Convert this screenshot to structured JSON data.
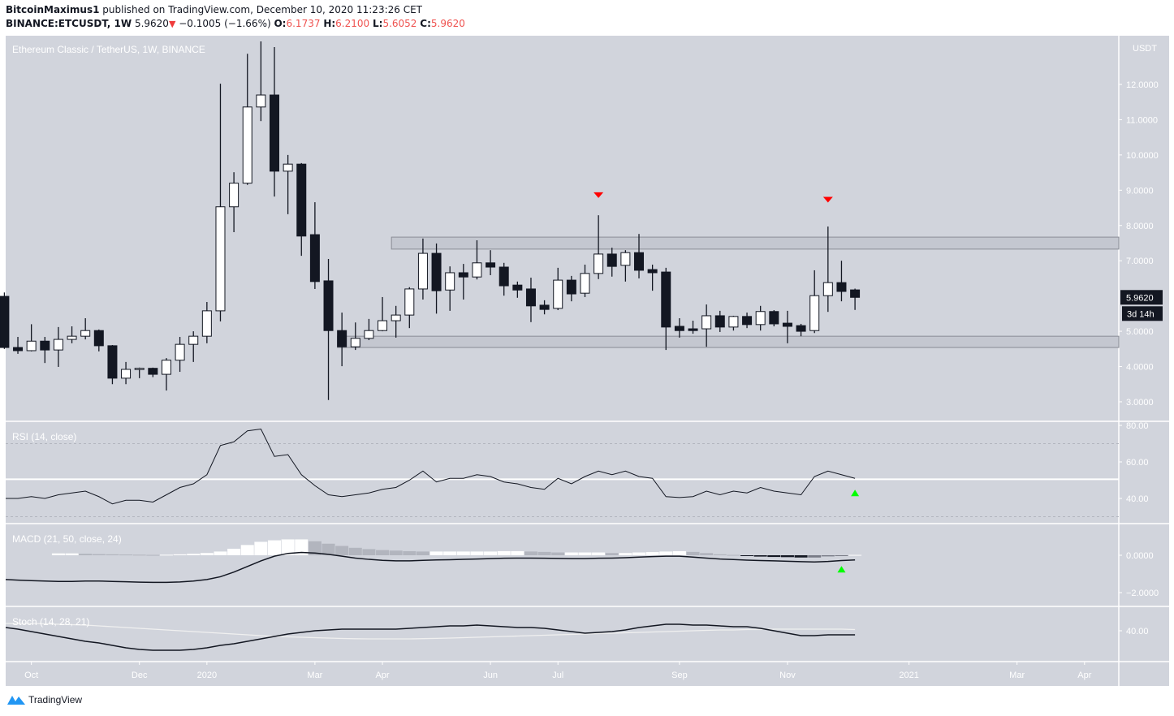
{
  "header": {
    "author": "BitcoinMaximus1",
    "published": "published on TradingView.com, December 10, 2020 11:23:26 CET",
    "symbol": "BINANCE:ETCUSDT, 1W",
    "last": "5.9620",
    "change": "−0.1005 (−1.66%)",
    "o_label": "O:",
    "o": "6.1737",
    "h_label": "H:",
    "h": "6.2100",
    "l_label": "L:",
    "l": "5.6052",
    "c_label": "C:",
    "c": "5.9620"
  },
  "footer": {
    "brand": "TradingView"
  },
  "colors": {
    "pane": "#d1d4dc",
    "down": "#131722",
    "up": "#ffffff",
    "red_marker": "#ff0000",
    "green_marker": "#00ff00"
  },
  "chart_data": {
    "type": "candlestick",
    "title": "Ethereum Classic / TetherUS, 1W, BINANCE",
    "currency_label": "USDT",
    "ylim": [
      2.4,
      13.9
    ],
    "y_ticks": [
      {
        "v": 12,
        "label": "12.0000"
      },
      {
        "v": 11,
        "label": "11.0000"
      },
      {
        "v": 10,
        "label": "10.0000"
      },
      {
        "v": 9,
        "label": "9.0000"
      },
      {
        "v": 8,
        "label": "8.0000"
      },
      {
        "v": 7,
        "label": "7.0000"
      },
      {
        "v": 5,
        "label": "5.0000"
      },
      {
        "v": 4,
        "label": "4.0000"
      },
      {
        "v": 3,
        "label": "3.0000"
      }
    ],
    "last_price": {
      "v": 5.962,
      "label": "5.9620",
      "countdown": "3d 14h"
    },
    "x_labels": [
      {
        "i": 2,
        "label": "Oct"
      },
      {
        "i": 10,
        "label": "Dec"
      },
      {
        "i": 15,
        "label": "2020"
      },
      {
        "i": 23,
        "label": "Mar"
      },
      {
        "i": 28,
        "label": "Apr"
      },
      {
        "i": 36,
        "label": "Jun"
      },
      {
        "i": 41,
        "label": "Jul"
      },
      {
        "i": 50,
        "label": "Sep"
      },
      {
        "i": 58,
        "label": "Nov"
      },
      {
        "i": 67,
        "label": "2021"
      },
      {
        "i": 75,
        "label": "Mar"
      },
      {
        "i": 80,
        "label": "Apr"
      }
    ],
    "candles": [
      [
        5.99,
        6.1,
        4.5,
        4.54
      ],
      [
        4.54,
        4.84,
        4.36,
        4.45
      ],
      [
        4.45,
        5.2,
        4.43,
        4.72
      ],
      [
        4.72,
        4.84,
        4.1,
        4.47
      ],
      [
        4.47,
        5.12,
        3.99,
        4.77
      ],
      [
        4.77,
        5.14,
        4.66,
        4.86
      ],
      [
        4.86,
        5.37,
        4.77,
        5.02
      ],
      [
        5.02,
        5.05,
        4.43,
        4.59
      ],
      [
        4.59,
        4.61,
        3.5,
        3.67
      ],
      [
        3.67,
        4.13,
        3.5,
        3.92
      ],
      [
        3.92,
        3.97,
        3.67,
        3.95
      ],
      [
        3.95,
        3.97,
        3.7,
        3.78
      ],
      [
        3.78,
        4.24,
        3.32,
        4.18
      ],
      [
        4.18,
        4.84,
        3.85,
        4.63
      ],
      [
        4.63,
        5.0,
        4.13,
        4.86
      ],
      [
        4.86,
        5.83,
        4.66,
        5.58
      ],
      [
        5.58,
        12.02,
        5.28,
        8.53
      ],
      [
        8.53,
        9.51,
        7.81,
        9.2
      ],
      [
        9.2,
        12.87,
        9.15,
        11.36
      ],
      [
        11.36,
        13.22,
        10.96,
        11.7
      ],
      [
        11.7,
        13.06,
        8.82,
        9.54
      ],
      [
        9.54,
        10.0,
        8.32,
        9.74
      ],
      [
        9.74,
        9.77,
        7.14,
        7.7
      ],
      [
        7.74,
        8.66,
        6.2,
        6.41
      ],
      [
        6.43,
        7.05,
        3.05,
        5.02
      ],
      [
        5.02,
        5.53,
        4.01,
        4.56
      ],
      [
        4.56,
        5.25,
        4.47,
        4.8
      ],
      [
        4.8,
        5.35,
        4.75,
        5.02
      ],
      [
        5.02,
        5.97,
        5.0,
        5.3
      ],
      [
        5.3,
        5.72,
        4.82,
        5.46
      ],
      [
        5.46,
        6.25,
        5.09,
        6.2
      ],
      [
        6.2,
        7.63,
        5.9,
        7.21
      ],
      [
        7.21,
        7.49,
        5.5,
        6.15
      ],
      [
        6.17,
        6.84,
        5.58,
        6.66
      ],
      [
        6.66,
        6.91,
        5.9,
        6.54
      ],
      [
        6.54,
        7.58,
        6.47,
        6.94
      ],
      [
        6.94,
        7.3,
        6.59,
        6.82
      ],
      [
        6.82,
        6.94,
        6.01,
        6.29
      ],
      [
        6.31,
        6.41,
        5.95,
        6.17
      ],
      [
        6.2,
        6.52,
        5.26,
        5.72
      ],
      [
        5.74,
        5.88,
        5.48,
        5.62
      ],
      [
        5.65,
        6.8,
        5.6,
        6.45
      ],
      [
        6.45,
        6.57,
        5.85,
        6.06
      ],
      [
        6.08,
        6.89,
        5.97,
        6.64
      ],
      [
        6.64,
        8.29,
        6.48,
        7.19
      ],
      [
        7.19,
        7.37,
        6.55,
        6.84
      ],
      [
        6.87,
        7.3,
        6.41,
        7.23
      ],
      [
        7.23,
        7.76,
        6.5,
        6.73
      ],
      [
        6.75,
        6.89,
        6.15,
        6.66
      ],
      [
        6.68,
        6.8,
        4.47,
        5.12
      ],
      [
        5.14,
        5.37,
        4.82,
        5.02
      ],
      [
        5.07,
        5.3,
        4.93,
        5.02
      ],
      [
        5.07,
        5.76,
        4.56,
        5.44
      ],
      [
        5.44,
        5.58,
        4.98,
        5.12
      ],
      [
        5.12,
        5.44,
        5.02,
        5.42
      ],
      [
        5.42,
        5.53,
        5.09,
        5.19
      ],
      [
        5.19,
        5.72,
        5.02,
        5.56
      ],
      [
        5.56,
        5.6,
        5.14,
        5.21
      ],
      [
        5.23,
        5.58,
        4.66,
        5.14
      ],
      [
        5.16,
        5.21,
        4.86,
        5.0
      ],
      [
        5.02,
        6.73,
        4.95,
        6.01
      ],
      [
        6.01,
        7.97,
        5.55,
        6.38
      ],
      [
        6.38,
        7.0,
        5.85,
        6.13
      ],
      [
        6.1737,
        6.21,
        5.6052,
        5.962
      ]
    ],
    "zones": [
      {
        "name": "resistance",
        "from": 7.33,
        "to": 7.67,
        "start_i": 29
      },
      {
        "name": "support",
        "from": 4.54,
        "to": 4.86,
        "start_i": 25
      }
    ],
    "markers": [
      {
        "pane": "price",
        "i": 44,
        "v": 8.85,
        "dir": "down",
        "color": "#ff0000"
      },
      {
        "pane": "price",
        "i": 61,
        "v": 8.72,
        "dir": "down",
        "color": "#ff0000"
      },
      {
        "pane": "rsi",
        "i": 63,
        "v": 43,
        "dir": "up",
        "color": "#00ff00"
      },
      {
        "pane": "macd",
        "i": 62,
        "v": -0.75,
        "dir": "up",
        "color": "#00ff00"
      }
    ],
    "rsi": {
      "title": "RSI (14, close)",
      "ticks": [
        {
          "v": 80,
          "label": "80.00"
        },
        {
          "v": 60,
          "label": "60.00"
        },
        {
          "v": 40,
          "label": "40.00"
        }
      ],
      "bands": [
        70,
        30
      ],
      "midline": 50.5,
      "values": [
        40,
        40,
        41,
        40,
        42,
        43,
        44,
        41,
        37,
        39,
        39,
        38,
        42,
        46,
        48,
        53,
        69,
        71,
        77,
        78,
        63,
        64,
        53,
        47,
        42,
        41,
        42,
        43,
        45,
        46,
        50,
        55,
        49,
        51,
        51,
        53,
        52,
        49,
        48,
        46,
        45,
        51,
        48,
        52,
        55,
        53,
        55,
        52,
        51,
        41,
        40.5,
        41,
        44,
        42,
        44,
        43,
        46,
        44,
        43,
        42,
        52,
        55,
        53,
        51
      ]
    },
    "macd": {
      "title": "MACD (21, 50, close, 24)",
      "ticks": [
        {
          "v": 0,
          "label": "0.0000"
        },
        {
          "v": -2,
          "label": "−2.0000"
        }
      ],
      "line": [
        -1.3,
        -1.33,
        -1.36,
        -1.38,
        -1.4,
        -1.4,
        -1.38,
        -1.38,
        -1.4,
        -1.42,
        -1.44,
        -1.45,
        -1.45,
        -1.43,
        -1.38,
        -1.3,
        -1.15,
        -0.9,
        -0.6,
        -0.3,
        -0.05,
        0.1,
        0.15,
        0.12,
        0.05,
        -0.05,
        -0.15,
        -0.22,
        -0.27,
        -0.3,
        -0.3,
        -0.27,
        -0.25,
        -0.24,
        -0.22,
        -0.2,
        -0.18,
        -0.16,
        -0.15,
        -0.15,
        -0.16,
        -0.17,
        -0.18,
        -0.18,
        -0.16,
        -0.15,
        -0.13,
        -0.1,
        -0.07,
        -0.05,
        -0.05,
        -0.1,
        -0.15,
        -0.2,
        -0.23,
        -0.26,
        -0.28,
        -0.3,
        -0.32,
        -0.34,
        -0.36,
        -0.33,
        -0.28,
        -0.25
      ],
      "histogram": [
        null,
        null,
        null,
        null,
        0.1,
        0.1,
        0.08,
        0.06,
        0.05,
        0.04,
        0.03,
        0.02,
        0.03,
        0.05,
        0.08,
        0.12,
        0.2,
        0.35,
        0.55,
        0.72,
        0.8,
        0.85,
        0.85,
        0.75,
        0.62,
        0.5,
        0.4,
        0.33,
        0.28,
        0.25,
        0.22,
        0.2,
        0.2,
        0.2,
        0.2,
        0.2,
        0.2,
        0.22,
        0.22,
        0.2,
        0.18,
        0.15,
        0.15,
        0.15,
        0.15,
        0.12,
        0.12,
        0.15,
        0.17,
        0.2,
        0.22,
        0.18,
        0.12,
        0.05,
        0.02,
        -0.04,
        -0.07,
        -0.09,
        -0.1,
        -0.12,
        -0.12,
        -0.06,
        -0.03,
        0.02
      ]
    },
    "stoch": {
      "title": "Stoch (14, 28, 21)",
      "ticks": [
        {
          "v": 40,
          "label": "40.00"
        }
      ],
      "k": [
        44,
        42,
        39,
        36,
        33,
        30,
        27,
        25,
        22,
        19,
        17,
        16,
        16,
        16,
        17,
        19,
        22,
        24,
        27,
        30,
        33,
        36,
        38,
        40,
        41,
        42,
        42,
        42,
        42,
        42,
        43,
        44,
        45,
        46,
        46,
        47,
        46,
        45,
        44,
        44,
        43,
        41,
        39,
        37,
        38,
        39,
        41,
        44,
        46,
        48,
        48,
        47,
        47,
        46,
        45,
        45,
        43,
        40,
        37,
        34,
        34,
        35,
        35,
        35
      ],
      "d": [
        49,
        49,
        49,
        48.5,
        48,
        47.5,
        47,
        46,
        45,
        44,
        43,
        42,
        41,
        40,
        39,
        38,
        37,
        36,
        35,
        34,
        33,
        32.5,
        32,
        31.5,
        31,
        30.5,
        30.2,
        30,
        30,
        30,
        30,
        30.3,
        30.6,
        31,
        31.5,
        32,
        32.5,
        33,
        33.5,
        34,
        34.5,
        35,
        35.5,
        36,
        36.5,
        37,
        37.5,
        38,
        38.5,
        39,
        39.5,
        40,
        40.5,
        41,
        41,
        41.5,
        41.5,
        42,
        42,
        42,
        42,
        42,
        42,
        41.5
      ]
    }
  }
}
